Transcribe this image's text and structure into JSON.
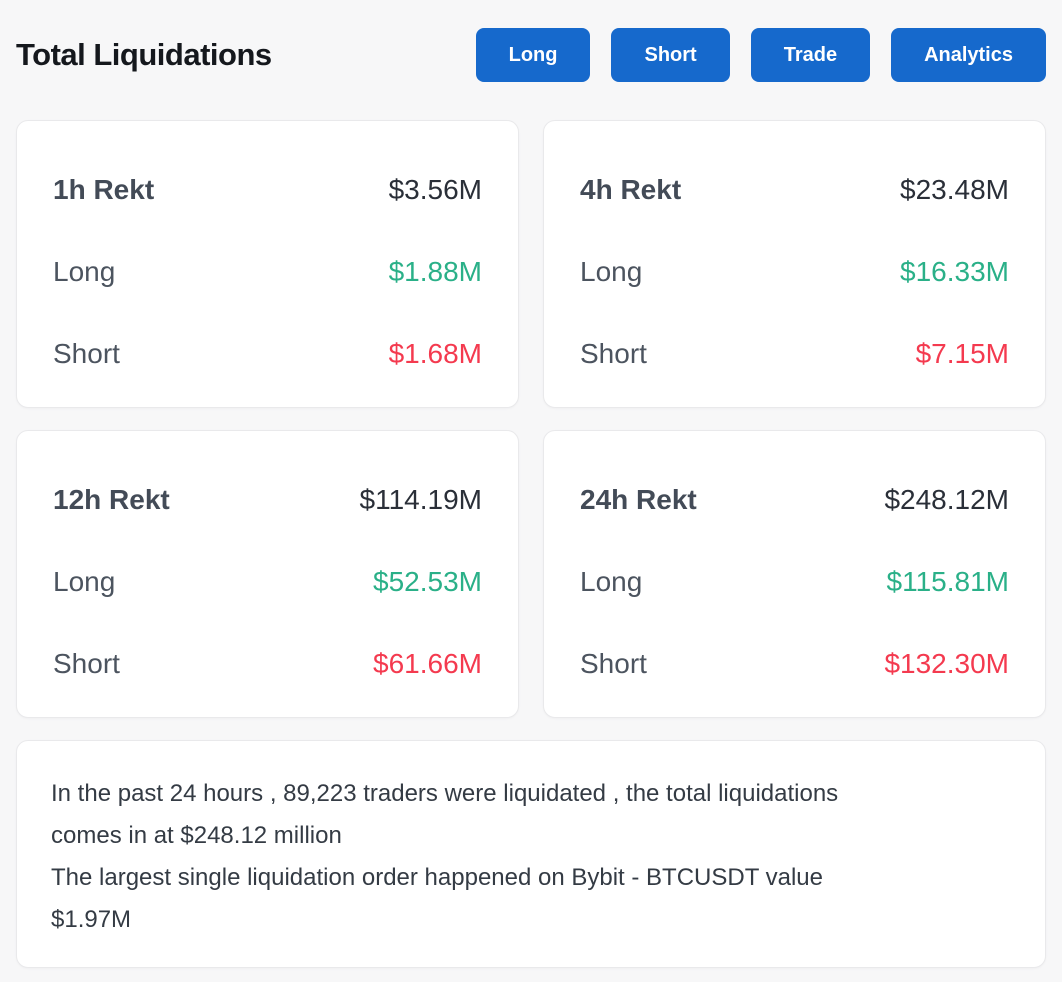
{
  "header": {
    "title": "Total Liquidations",
    "buttons": [
      {
        "label": "Long"
      },
      {
        "label": "Short"
      },
      {
        "label": "Trade"
      },
      {
        "label": "Analytics"
      }
    ]
  },
  "cards": [
    {
      "period": "1h Rekt",
      "total": "$3.56M",
      "long_label": "Long",
      "long_value": "$1.88M",
      "short_label": "Short",
      "short_value": "$1.68M"
    },
    {
      "period": "4h Rekt",
      "total": "$23.48M",
      "long_label": "Long",
      "long_value": "$16.33M",
      "short_label": "Short",
      "short_value": "$7.15M"
    },
    {
      "period": "12h Rekt",
      "total": "$114.19M",
      "long_label": "Long",
      "long_value": "$52.53M",
      "short_label": "Short",
      "short_value": "$61.66M"
    },
    {
      "period": "24h Rekt",
      "total": "$248.12M",
      "long_label": "Long",
      "long_value": "$115.81M",
      "short_label": "Short",
      "short_value": "$132.30M"
    }
  ],
  "summary": {
    "line1a": "In the past 24 hours , 89,223 traders were liquidated , the total liquidations",
    "line1b": "comes in at $248.12 million",
    "line2a": "The largest single liquidation order happened on Bybit - BTCUSDT value",
    "line2b": "$1.97M"
  },
  "colors": {
    "accent": "#1669CC",
    "green": "#2AB088",
    "red": "#F43A4F",
    "bg": "#F7F7F8",
    "card_border": "#E9E9EB",
    "title": "#15181D",
    "heading": "#434B57",
    "value": "#2A2F38",
    "label": "#4C545F",
    "text": "#343B44"
  }
}
